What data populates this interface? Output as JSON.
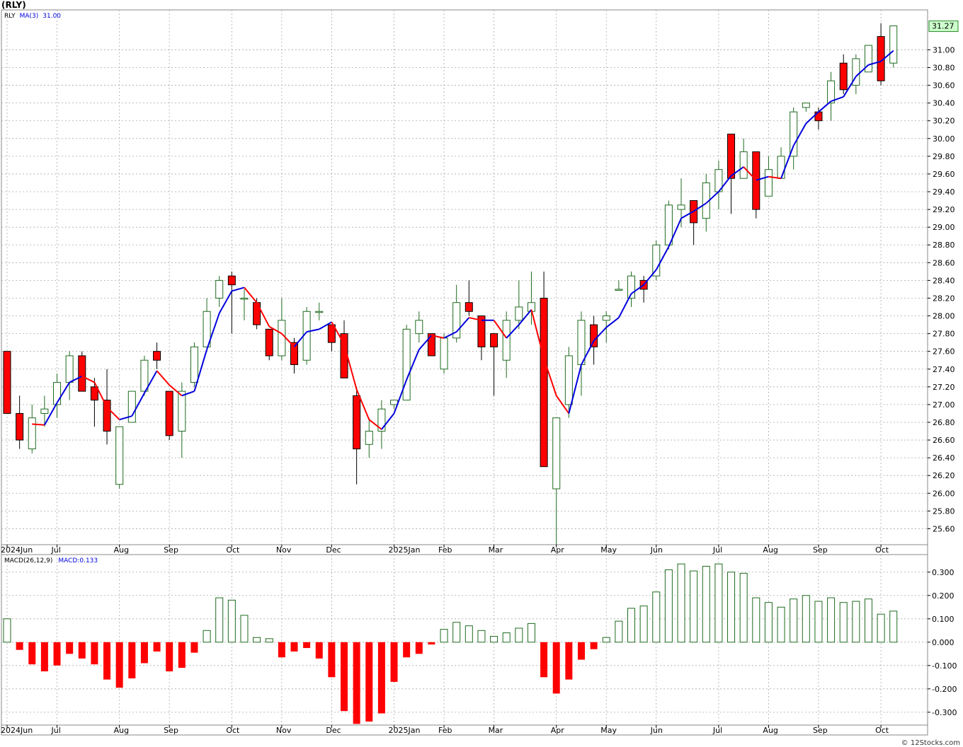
{
  "header": {
    "symbol": "(RLY)"
  },
  "credit": "© 12Stocks.com",
  "colors": {
    "up": "#1f6b1f",
    "down": "#ff0000",
    "ma_up": "#0000dd",
    "ma_down": "#ff0000",
    "grid": "#aaaaaa",
    "last_price_bg": "#ccffcc"
  },
  "chart_data": [
    {
      "type": "candlestick",
      "title": "",
      "legend": [
        {
          "text": "RLY",
          "color": "#000000"
        },
        {
          "text": "MA(3)",
          "color": "#0000dd"
        },
        {
          "text": "31.00",
          "color": "#0000dd"
        }
      ],
      "last_price_label": "31.27",
      "ylim": [
        25.42,
        31.45
      ],
      "y_ticks": [
        "25.60",
        "25.80",
        "26.00",
        "26.20",
        "26.40",
        "26.60",
        "26.80",
        "27.00",
        "27.20",
        "27.40",
        "27.60",
        "27.80",
        "28.00",
        "28.20",
        "28.40",
        "28.60",
        "28.80",
        "29.00",
        "29.20",
        "29.40",
        "29.60",
        "29.80",
        "30.00",
        "30.20",
        "30.40",
        "30.60",
        "30.80",
        "31.00"
      ],
      "x_labels": [
        {
          "label": "2024Jun",
          "i": 0
        },
        {
          "label": "Jul",
          "i": 4
        },
        {
          "label": "Aug",
          "i": 9
        },
        {
          "label": "Sep",
          "i": 13
        },
        {
          "label": "Oct",
          "i": 18
        },
        {
          "label": "Nov",
          "i": 22
        },
        {
          "label": "Dec",
          "i": 26
        },
        {
          "label": "2025Jan",
          "i": 31
        },
        {
          "label": "Feb",
          "i": 35
        },
        {
          "label": "Mar",
          "i": 39
        },
        {
          "label": "Apr",
          "i": 44
        },
        {
          "label": "May",
          "i": 48
        },
        {
          "label": "Jun",
          "i": 52
        },
        {
          "label": "Jul",
          "i": 57
        },
        {
          "label": "Aug",
          "i": 61
        },
        {
          "label": "Sep",
          "i": 65
        },
        {
          "label": "Oct",
          "i": 70
        }
      ],
      "ohlc": [
        [
          27.6,
          27.6,
          26.9,
          26.9
        ],
        [
          26.9,
          27.1,
          26.5,
          26.6
        ],
        [
          26.5,
          27.0,
          26.45,
          26.85
        ],
        [
          26.9,
          27.1,
          26.75,
          26.95
        ],
        [
          27.0,
          27.35,
          26.85,
          27.25
        ],
        [
          27.25,
          27.6,
          27.05,
          27.55
        ],
        [
          27.55,
          27.6,
          27.15,
          27.15
        ],
        [
          27.2,
          27.3,
          26.75,
          27.05
        ],
        [
          27.05,
          27.4,
          26.55,
          26.7
        ],
        [
          26.1,
          26.75,
          26.05,
          26.75
        ],
        [
          26.8,
          27.15,
          26.8,
          27.15
        ],
        [
          27.15,
          27.55,
          27.1,
          27.5
        ],
        [
          27.6,
          27.7,
          27.4,
          27.5
        ],
        [
          27.15,
          27.15,
          26.6,
          26.65
        ],
        [
          26.7,
          27.25,
          26.4,
          27.15
        ],
        [
          27.25,
          27.7,
          27.2,
          27.65
        ],
        [
          27.65,
          28.2,
          27.65,
          28.05
        ],
        [
          28.2,
          28.45,
          28.1,
          28.4
        ],
        [
          28.45,
          28.5,
          27.8,
          28.35
        ],
        [
          28.2,
          28.3,
          27.95,
          28.2
        ],
        [
          28.15,
          28.2,
          27.85,
          27.9
        ],
        [
          27.85,
          27.85,
          27.5,
          27.55
        ],
        [
          27.55,
          28.2,
          27.5,
          27.95
        ],
        [
          27.7,
          27.75,
          27.35,
          27.45
        ],
        [
          27.5,
          28.1,
          27.45,
          28.05
        ],
        [
          28.05,
          28.15,
          27.95,
          28.05
        ],
        [
          27.9,
          27.9,
          27.6,
          27.7
        ],
        [
          27.8,
          27.95,
          27.3,
          27.3
        ],
        [
          27.1,
          27.2,
          26.1,
          26.5
        ],
        [
          26.55,
          26.85,
          26.4,
          26.7
        ],
        [
          26.7,
          27.05,
          26.5,
          26.95
        ],
        [
          27.0,
          27.05,
          26.95,
          27.05
        ],
        [
          27.05,
          27.9,
          27.05,
          27.85
        ],
        [
          27.8,
          28.05,
          27.7,
          27.95
        ],
        [
          27.8,
          27.8,
          27.55,
          27.55
        ],
        [
          27.4,
          27.8,
          27.35,
          27.75
        ],
        [
          27.75,
          28.35,
          27.7,
          28.15
        ],
        [
          28.15,
          28.4,
          28.0,
          28.05
        ],
        [
          28.0,
          28.0,
          27.5,
          27.65
        ],
        [
          27.8,
          27.8,
          27.1,
          27.65
        ],
        [
          27.5,
          28.05,
          27.3,
          27.95
        ],
        [
          27.95,
          28.4,
          27.85,
          28.1
        ],
        [
          28.05,
          28.5,
          27.9,
          28.15
        ],
        [
          28.2,
          28.5,
          26.3,
          26.3
        ],
        [
          26.05,
          26.85,
          25.42,
          26.85
        ],
        [
          27.0,
          27.65,
          26.85,
          27.55
        ],
        [
          27.45,
          28.05,
          27.1,
          27.95
        ],
        [
          27.9,
          28.0,
          27.45,
          27.65
        ],
        [
          27.95,
          28.05,
          27.7,
          28.0
        ],
        [
          28.3,
          28.4,
          28.3,
          28.3
        ],
        [
          28.2,
          28.5,
          28.1,
          28.45
        ],
        [
          28.4,
          28.45,
          28.15,
          28.3
        ],
        [
          28.45,
          28.85,
          28.4,
          28.8
        ],
        [
          28.8,
          29.3,
          28.75,
          29.25
        ],
        [
          29.2,
          29.55,
          29.0,
          29.25
        ],
        [
          29.3,
          29.3,
          28.8,
          29.05
        ],
        [
          29.1,
          29.6,
          28.95,
          29.5
        ],
        [
          29.4,
          29.75,
          29.2,
          29.65
        ],
        [
          30.05,
          30.05,
          29.15,
          29.55
        ],
        [
          29.55,
          30.0,
          29.55,
          29.85
        ],
        [
          29.85,
          29.85,
          29.1,
          29.2
        ],
        [
          29.35,
          29.8,
          29.35,
          29.65
        ],
        [
          29.55,
          29.9,
          29.55,
          29.8
        ],
        [
          29.8,
          30.35,
          29.65,
          30.3
        ],
        [
          30.35,
          30.4,
          30.3,
          30.4
        ],
        [
          30.3,
          30.35,
          30.1,
          30.2
        ],
        [
          30.4,
          30.75,
          30.2,
          30.65
        ],
        [
          30.85,
          30.95,
          30.5,
          30.55
        ],
        [
          30.6,
          30.95,
          30.5,
          30.9
        ],
        [
          30.75,
          31.05,
          30.75,
          31.05
        ],
        [
          31.15,
          31.3,
          30.6,
          30.65
        ],
        [
          30.85,
          31.27,
          30.8,
          31.27
        ]
      ],
      "ma3": [
        null,
        null,
        26.78,
        26.77,
        27.02,
        27.25,
        27.32,
        27.25,
        26.97,
        26.83,
        26.87,
        27.13,
        27.38,
        27.22,
        27.1,
        27.15,
        27.62,
        28.03,
        28.28,
        28.32,
        28.15,
        27.88,
        27.8,
        27.65,
        27.82,
        27.85,
        27.93,
        27.68,
        27.17,
        26.83,
        26.72,
        26.9,
        27.28,
        27.62,
        27.78,
        27.75,
        27.82,
        27.98,
        27.95,
        27.95,
        27.75,
        27.9,
        28.07,
        27.52,
        27.1,
        26.9,
        27.45,
        27.72,
        27.87,
        27.98,
        28.25,
        28.35,
        28.52,
        28.78,
        29.1,
        29.18,
        29.27,
        29.4,
        29.58,
        29.68,
        29.53,
        29.57,
        29.55,
        29.92,
        30.17,
        30.3,
        30.42,
        30.47,
        30.7,
        30.83,
        30.87,
        30.99
      ],
      "ma3_last": 31.0
    },
    {
      "type": "bar",
      "title": "",
      "legend": [
        {
          "text": "MACD(26,12,9)",
          "color": "#000000"
        },
        {
          "text": "MACD:0.133",
          "color": "#0000dd"
        }
      ],
      "ylim": [
        -0.355,
        0.375
      ],
      "y_ticks": [
        "0.300",
        "0.200",
        "0.100",
        "0.000",
        "-0.100",
        "-0.200",
        "-0.300"
      ],
      "x_labels": [
        {
          "label": "2024Jun",
          "i": 0
        },
        {
          "label": "Jul",
          "i": 4
        },
        {
          "label": "Aug",
          "i": 9
        },
        {
          "label": "Sep",
          "i": 13
        },
        {
          "label": "Oct",
          "i": 18
        },
        {
          "label": "Nov",
          "i": 22
        },
        {
          "label": "Dec",
          "i": 26
        },
        {
          "label": "2025Jan",
          "i": 31
        },
        {
          "label": "Feb",
          "i": 35
        },
        {
          "label": "Mar",
          "i": 39
        },
        {
          "label": "Apr",
          "i": 44
        },
        {
          "label": "May",
          "i": 48
        },
        {
          "label": "Jun",
          "i": 52
        },
        {
          "label": "Jul",
          "i": 57
        },
        {
          "label": "Aug",
          "i": 61
        },
        {
          "label": "Sep",
          "i": 65
        },
        {
          "label": "Oct",
          "i": 70
        }
      ],
      "values": [
        0.1,
        -0.033,
        -0.095,
        -0.125,
        -0.1,
        -0.05,
        -0.07,
        -0.095,
        -0.16,
        -0.195,
        -0.155,
        -0.09,
        -0.04,
        -0.125,
        -0.11,
        -0.045,
        0.05,
        0.19,
        0.18,
        0.115,
        0.02,
        0.015,
        -0.065,
        -0.04,
        -0.025,
        -0.07,
        -0.15,
        -0.295,
        -0.35,
        -0.34,
        -0.305,
        -0.17,
        -0.065,
        -0.05,
        -0.01,
        0.055,
        0.085,
        0.07,
        0.05,
        0.025,
        0.04,
        0.06,
        0.08,
        -0.15,
        -0.22,
        -0.16,
        -0.075,
        -0.03,
        0.02,
        0.09,
        0.145,
        0.155,
        0.215,
        0.31,
        0.335,
        0.305,
        0.325,
        0.335,
        0.3,
        0.295,
        0.19,
        0.17,
        0.15,
        0.185,
        0.2,
        0.175,
        0.19,
        0.17,
        0.175,
        0.185,
        0.12,
        0.133
      ]
    }
  ]
}
